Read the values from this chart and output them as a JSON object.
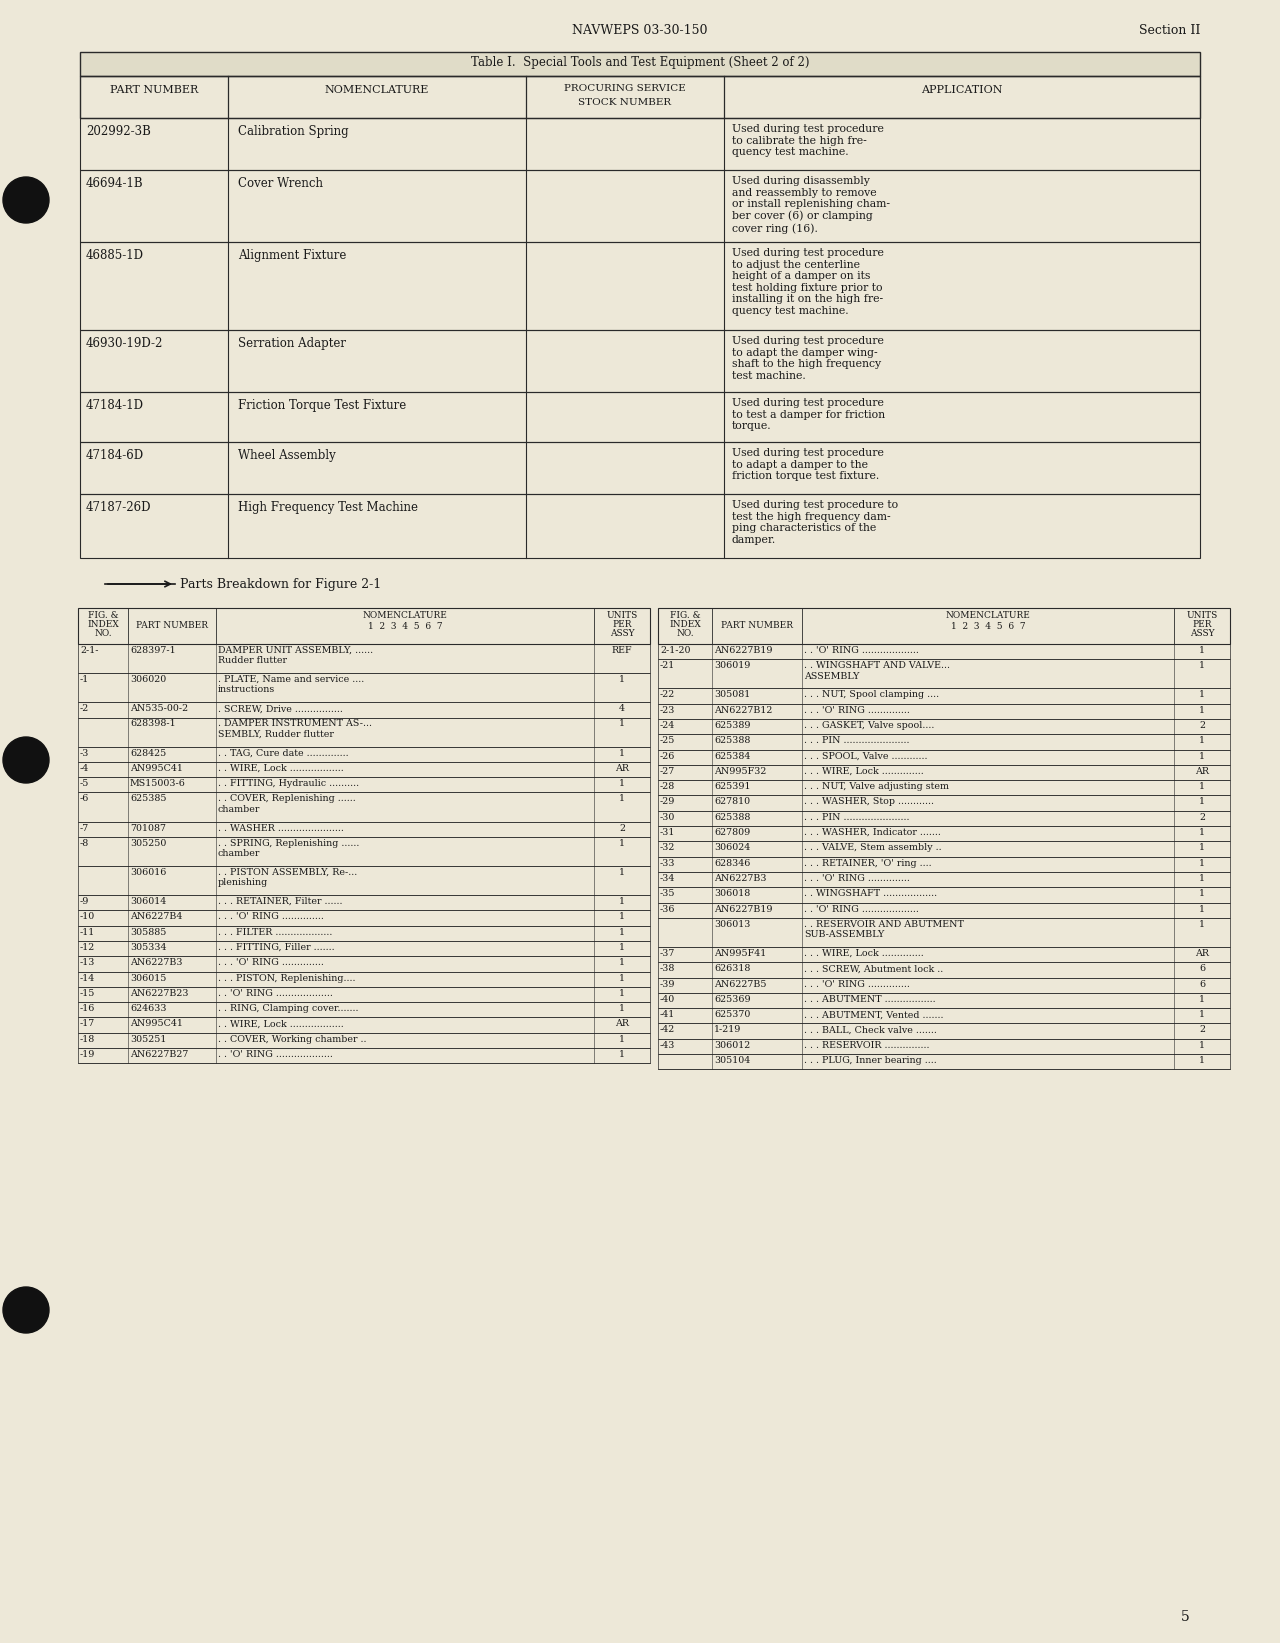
{
  "bg_color": "#ede8d8",
  "text_color": "#1a1a1a",
  "header_text": "NAVWEPS 03-30-150",
  "section_text": "Section II",
  "page_number": "5",
  "table_title": "Table I.  Special Tools and Test Equipment (Sheet 2 of 2)",
  "table_rows": [
    {
      "part": "202992-3B",
      "nomenclature": "Calibration Spring",
      "application": "Used during test procedure\nto calibrate the high fre-\nquency test machine."
    },
    {
      "part": "46694-1B",
      "nomenclature": "Cover Wrench",
      "application": "Used during disassembly\nand reassembly to remove\nor install replenishing cham-\nber cover (6) or clamping\ncover ring (16)."
    },
    {
      "part": "46885-1D",
      "nomenclature": "Alignment Fixture",
      "application": "Used during test procedure\nto adjust the centerline\nheight of a damper on its\ntest holding fixture prior to\ninstalling it on the high fre-\nquency test machine."
    },
    {
      "part": "46930-19D-2",
      "nomenclature": "Serration Adapter",
      "application": "Used during test procedure\nto adapt the damper wing-\nshaft to the high frequency\ntest machine."
    },
    {
      "part": "47184-1D",
      "nomenclature": "Friction Torque Test Fixture",
      "application": "Used during test procedure\nto test a damper for friction\ntorque."
    },
    {
      "part": "47184-6D",
      "nomenclature": "Wheel Assembly",
      "application": "Used during test procedure\nto adapt a damper to the\nfriction torque test fixture."
    },
    {
      "part": "47187-26D",
      "nomenclature": "High Frequency Test Machine",
      "application": "Used during test procedure to\ntest the high frequency dam-\nping characteristics of the\ndamper."
    }
  ],
  "left_parts_rows": [
    [
      "2-1-",
      "628397-1",
      "DAMPER UNIT ASSEMBLY, ......\nRudder flutter",
      "REF"
    ],
    [
      "-1",
      "306020",
      ". PLATE, Name and service ....\ninstructions",
      "1"
    ],
    [
      "-2",
      "AN535-00-2",
      ". SCREW, Drive ................",
      "4"
    ],
    [
      "",
      "628398-1",
      ". DAMPER INSTRUMENT AS-...\nSEMBLY, Rudder flutter",
      "1"
    ],
    [
      "-3",
      "628425",
      ". . TAG, Cure date ..............",
      "1"
    ],
    [
      "-4",
      "AN995C41",
      ". . WIRE, Lock ..................",
      "AR"
    ],
    [
      "-5",
      "MS15003-6",
      ". . FITTING, Hydraulic ..........",
      "1"
    ],
    [
      "-6",
      "625385",
      ". . COVER, Replenishing ......\nchamber",
      "1"
    ],
    [
      "-7",
      "701087",
      ". . WASHER ......................",
      "2"
    ],
    [
      "-8",
      "305250",
      ". . SPRING, Replenishing ......\nchamber",
      "1"
    ],
    [
      "",
      "306016",
      ". . PISTON ASSEMBLY, Re-...\nplenishing",
      "1"
    ],
    [
      "-9",
      "306014",
      ". . . RETAINER, Filter ......",
      "1"
    ],
    [
      "-10",
      "AN6227B4",
      ". . . 'O' RING ..............",
      "1"
    ],
    [
      "-11",
      "305885",
      ". . . FILTER ...................",
      "1"
    ],
    [
      "-12",
      "305334",
      ". . . FITTING, Filler .......",
      "1"
    ],
    [
      "-13",
      "AN6227B3",
      ". . . 'O' RING ..............",
      "1"
    ],
    [
      "-14",
      "306015",
      ". . . PISTON, Replenishing....",
      "1"
    ],
    [
      "-15",
      "AN6227B23",
      ". . 'O' RING ...................",
      "1"
    ],
    [
      "-16",
      "624633",
      ". . RING, Clamping cover.......",
      "1"
    ],
    [
      "-17",
      "AN995C41",
      ". . WIRE, Lock ..................",
      "AR"
    ],
    [
      "-18",
      "305251",
      ". . COVER, Working chamber ..",
      "1"
    ],
    [
      "-19",
      "AN6227B27",
      ". . 'O' RING ...................",
      "1"
    ]
  ],
  "right_parts_rows": [
    [
      "2-1-20",
      "AN6227B19",
      ". . 'O' RING ...................",
      "1"
    ],
    [
      "-21",
      "306019",
      ". . WINGSHAFT AND VALVE...\nASSEMBLY",
      "1"
    ],
    [
      "-22",
      "305081",
      ". . . NUT, Spool clamping ....",
      "1"
    ],
    [
      "-23",
      "AN6227B12",
      ". . . 'O' RING ..............",
      "1"
    ],
    [
      "-24",
      "625389",
      ". . . GASKET, Valve spool....",
      "2"
    ],
    [
      "-25",
      "625388",
      ". . . PIN ......................",
      "1"
    ],
    [
      "-26",
      "625384",
      ". . . SPOOL, Valve ............",
      "1"
    ],
    [
      "-27",
      "AN995F32",
      ". . . WIRE, Lock ..............",
      "AR"
    ],
    [
      "-28",
      "625391",
      ". . . NUT, Valve adjusting stem",
      "1"
    ],
    [
      "-29",
      "627810",
      ". . . WASHER, Stop ............",
      "1"
    ],
    [
      "-30",
      "625388",
      ". . . PIN ......................",
      "2"
    ],
    [
      "-31",
      "627809",
      ". . . WASHER, Indicator .......",
      "1"
    ],
    [
      "-32",
      "306024",
      ". . . VALVE, Stem assembly ..",
      "1"
    ],
    [
      "-33",
      "628346",
      ". . . RETAINER, 'O' ring ....",
      "1"
    ],
    [
      "-34",
      "AN6227B3",
      ". . . 'O' RING ..............",
      "1"
    ],
    [
      "-35",
      "306018",
      ". . WINGSHAFT ..................",
      "1"
    ],
    [
      "-36",
      "AN6227B19",
      ". . 'O' RING ...................",
      "1"
    ],
    [
      "",
      "306013",
      ". . RESERVOIR AND ABUTMENT\nSUB-ASSEMBLY",
      "1"
    ],
    [
      "-37",
      "AN995F41",
      ". . . WIRE, Lock ..............",
      "AR"
    ],
    [
      "-38",
      "626318",
      ". . . SCREW, Abutment lock ..",
      "6"
    ],
    [
      "-39",
      "AN6227B5",
      ". . . 'O' RING ..............",
      "6"
    ],
    [
      "-40",
      "625369",
      ". . . ABUTMENT .................",
      "1"
    ],
    [
      "-41",
      "625370",
      ". . . ABUTMENT, Vented .......",
      "1"
    ],
    [
      "-42",
      "1-219",
      ". . . BALL, Check valve .......",
      "2"
    ],
    [
      "-43",
      "306012",
      ". . . RESERVOIR ...............",
      "1"
    ],
    [
      "",
      "305104",
      ". . . PLUG, Inner bearing ....",
      "1"
    ]
  ]
}
